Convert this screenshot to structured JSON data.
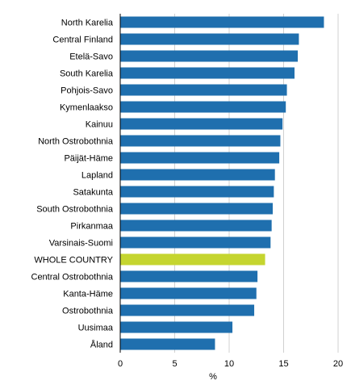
{
  "chart_data": {
    "type": "bar",
    "orientation": "horizontal",
    "categories": [
      "North Karelia",
      "Central Finland",
      "Etelä-Savo",
      "South Karelia",
      "Pohjois-Savo",
      "Kymenlaakso",
      "Kainuu",
      "North Ostrobothnia",
      "Päijät-Häme",
      "Lapland",
      "Satakunta",
      "South Ostrobothnia",
      "Pirkanmaa",
      "Varsinais-Suomi",
      "WHOLE COUNTRY",
      "Central Ostrobothnia",
      "Kanta-Häme",
      "Ostrobothnia",
      "Uusimaa",
      "Åland"
    ],
    "values": [
      18.7,
      16.4,
      16.3,
      16.0,
      15.3,
      15.2,
      14.9,
      14.7,
      14.6,
      14.2,
      14.1,
      14.0,
      13.9,
      13.8,
      13.3,
      12.6,
      12.5,
      12.3,
      10.3,
      8.7
    ],
    "highlight_category": "WHOLE COUNTRY",
    "colors": {
      "bar": "#1f6fae",
      "highlight": "#c5d52f"
    },
    "xlim": [
      0,
      20
    ],
    "xticks": [
      0,
      5,
      10,
      15,
      20
    ],
    "xlabel": "%",
    "grid": "vertical",
    "legend": "none"
  }
}
